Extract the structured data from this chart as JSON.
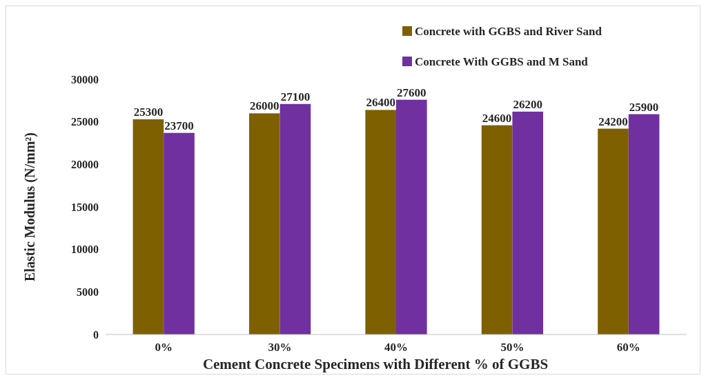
{
  "chart_data": {
    "type": "bar",
    "xlabel": "Cement Concrete Specimens with Different % of GGBS",
    "ylabel": "Elastic Modulus (N/mm²)",
    "categories": [
      "0%",
      "30%",
      "40%",
      "50%",
      "60%"
    ],
    "series": [
      {
        "name": "Concrete with GGBS and River Sand",
        "color": "#7f6000",
        "values": [
          25300,
          26000,
          26400,
          24600,
          24200
        ]
      },
      {
        "name": "Concrete With GGBS and M Sand",
        "color": "#7030a0",
        "values": [
          23700,
          27100,
          27600,
          26200,
          25900
        ]
      }
    ],
    "ylim": [
      0,
      30000
    ],
    "yticks": [
      0,
      5000,
      10000,
      15000,
      20000,
      25000,
      30000
    ],
    "grid": false,
    "legend": "top right",
    "data_labels": true
  }
}
